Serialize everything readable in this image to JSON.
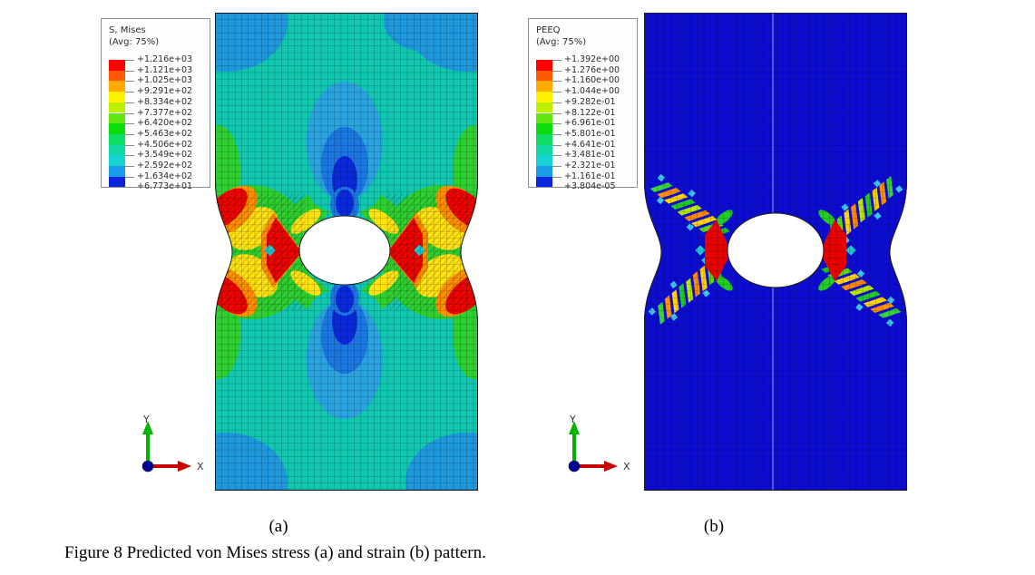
{
  "figure": {
    "caption": "Figure 8 Predicted von Mises stress (a) and strain (b) pattern.",
    "label_a": "(a)",
    "label_b": "(b)"
  },
  "panel_a": {
    "legend": {
      "title": "S, Mises",
      "subtitle": "(Avg: 75%)",
      "values": [
        "+1.216e+03",
        "+1.121e+03",
        "+1.025e+03",
        "+9.291e+02",
        "+8.334e+02",
        "+7.377e+02",
        "+6.420e+02",
        "+5.463e+02",
        "+4.506e+02",
        "+3.549e+02",
        "+2.592e+02",
        "+1.634e+02",
        "+6.773e+01"
      ],
      "band_colors": [
        "#ff0000",
        "#ff5a00",
        "#ffaa00",
        "#fff200",
        "#bdf000",
        "#62e810",
        "#0ddc0d",
        "#0fdc64",
        "#12d7a4",
        "#16d2d2",
        "#1b9ce8",
        "#0a23dd"
      ]
    },
    "triad": {
      "x": "X",
      "y": "Y"
    }
  },
  "panel_b": {
    "legend": {
      "title": "PEEQ",
      "subtitle": "(Avg: 75%)",
      "values": [
        "+1.392e+00",
        "+1.276e+00",
        "+1.160e+00",
        "+1.044e+00",
        "+9.282e-01",
        "+8.122e-01",
        "+6.961e-01",
        "+5.801e-01",
        "+4.641e-01",
        "+3.481e-01",
        "+2.321e-01",
        "+1.161e-01",
        "+3.804e-05"
      ],
      "band_colors": [
        "#ff0000",
        "#ff5a00",
        "#ffaa00",
        "#fff200",
        "#bdf000",
        "#62e810",
        "#0ddc0d",
        "#0fdc64",
        "#12d7a4",
        "#16d2d2",
        "#1b9ce8",
        "#0a23dd"
      ]
    },
    "triad": {
      "x": "X",
      "y": "Y"
    }
  },
  "palette": {
    "stress_base_teal": "#12c7af",
    "strain_base_blue": "#0d0dd2",
    "contour_max_red": "#ee0400",
    "corner_blue": "#1e97dd",
    "deep_blue_core": "#0a2ad9",
    "green_band": "#2fcf31",
    "yellow_band": "#ffe212",
    "orange_band": "#ff9000",
    "cyan_fleck": "#3cc4ee",
    "triad_x_red": "#c80000",
    "triad_y_green": "#00b400",
    "triad_origin_navy": "#000096",
    "legend_border": "#8f8f8f"
  }
}
